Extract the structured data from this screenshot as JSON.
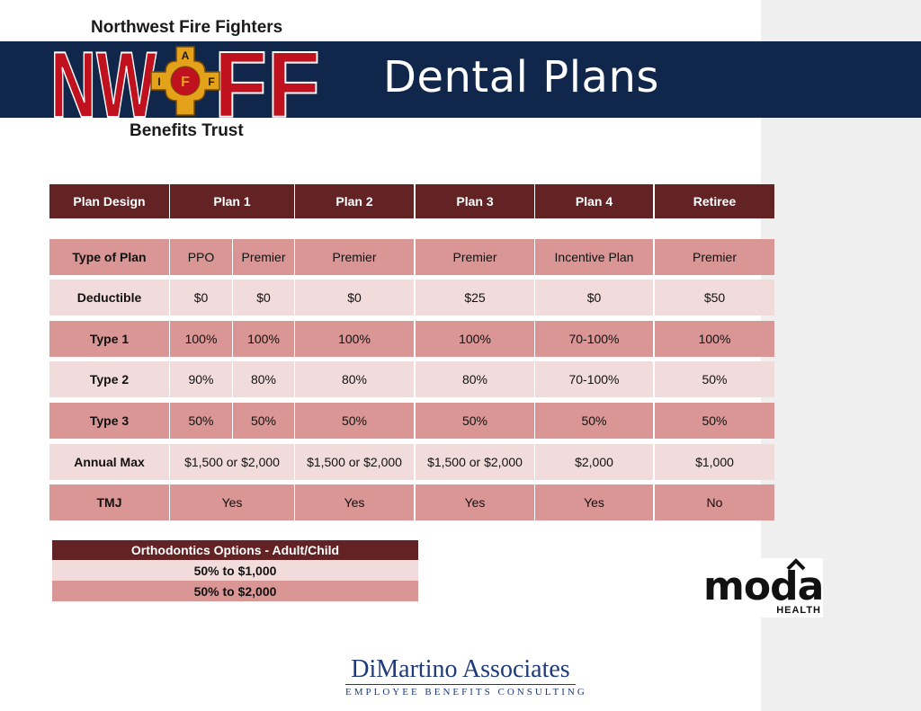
{
  "slide": {
    "title": "Dental Plans"
  },
  "logo": {
    "top_text": "Northwest Fire Fighters",
    "letters_left": "NW",
    "letters_right": "FF",
    "bottom_text": "Benefits Trust",
    "emblem_letters": [
      "A",
      "I",
      "F",
      "F"
    ]
  },
  "table": {
    "headers": [
      "Plan Design",
      "Plan 1",
      "Plan 2",
      "Plan 3",
      "Plan 4",
      "Retiree"
    ],
    "rows": [
      {
        "label": "Type of Plan",
        "p1a": "PPO",
        "p1b": "Premier",
        "p2": "Premier",
        "p3": "Premier",
        "p4": "Incentive Plan",
        "ret": "Premier"
      },
      {
        "label": "Deductible",
        "p1a": "$0",
        "p1b": "$0",
        "p2": "$0",
        "p3": "$25",
        "p4": "$0",
        "ret": "$50"
      },
      {
        "label": "Type 1",
        "p1a": "100%",
        "p1b": "100%",
        "p2": "100%",
        "p3": "100%",
        "p4": "70-100%",
        "ret": "100%"
      },
      {
        "label": "Type 2",
        "p1a": "90%",
        "p1b": "80%",
        "p2": "80%",
        "p3": "80%",
        "p4": "70-100%",
        "ret": "50%"
      },
      {
        "label": "Type 3",
        "p1a": "50%",
        "p1b": "50%",
        "p2": "50%",
        "p3": "50%",
        "p4": "50%",
        "ret": "50%"
      },
      {
        "label": "Annual Max",
        "p1": "$1,500 or $2,000",
        "p2": "$1,500 or $2,000",
        "p3": "$1,500 or $2,000",
        "p4": "$2,000",
        "ret": "$1,000"
      },
      {
        "label": "TMJ",
        "p1": "Yes",
        "p2": "Yes",
        "p3": "Yes",
        "p4": "Yes",
        "ret": "No"
      }
    ]
  },
  "orthodontics": {
    "header": "Orthodontics Options -  Adult/Child",
    "rows": [
      "50% to $1,000",
      "50% to $2,000"
    ]
  },
  "moda": {
    "wordmark": "moda",
    "sub": "HEALTH"
  },
  "dimartino": {
    "name": "DiMartino Associates",
    "tagline": "EMPLOYEE BENEFITS CONSULTING"
  },
  "colors": {
    "banner": "#10264a",
    "header_cell": "#632324",
    "row_dark": "#d99694",
    "row_light": "#f2dcdb",
    "logo_red": "#c0111f",
    "emblem_gold": "#e3a21a"
  }
}
